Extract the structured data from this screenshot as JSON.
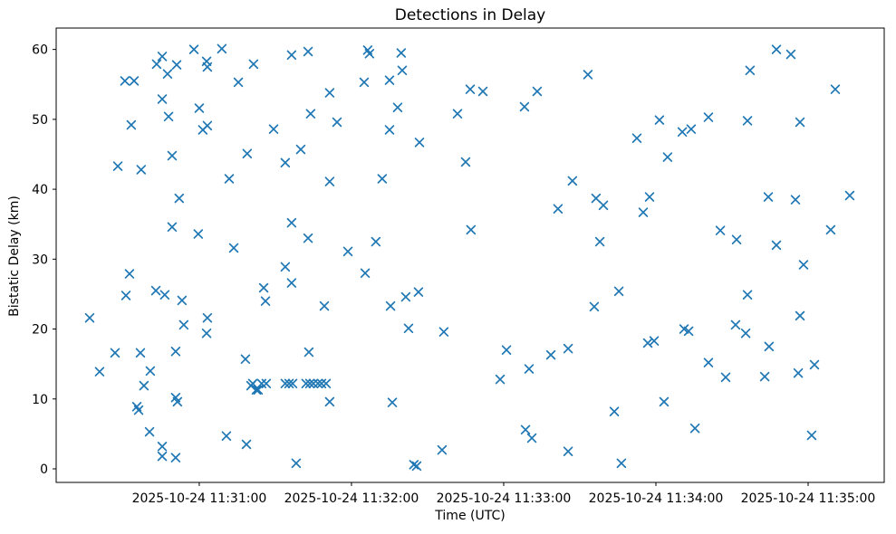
{
  "chart_data": {
    "type": "scatter",
    "title": "Detections in Delay",
    "xlabel": "Time (UTC)",
    "ylabel": "Bistatic Delay (km)",
    "x_unit": "seconds after 2025-10-24 11:30:00 UTC",
    "xlim": [
      3.6,
      330.0
    ],
    "ylim": [
      -1.94,
      63.06
    ],
    "x_ticks": [
      {
        "sec": 60,
        "label": "2025-10-24 11:31:00"
      },
      {
        "sec": 120,
        "label": "2025-10-24 11:32:00"
      },
      {
        "sec": 180,
        "label": "2025-10-24 11:33:00"
      },
      {
        "sec": 240,
        "label": "2025-10-24 11:34:00"
      },
      {
        "sec": 300,
        "label": "2025-10-24 11:35:00"
      }
    ],
    "y_ticks": [
      0,
      10,
      20,
      30,
      40,
      50,
      60
    ],
    "marker": "x",
    "marker_color": "#1f77b4",
    "spine_color": "#000000",
    "background_color": "#ffffff",
    "points": [
      [
        57.9,
        60.0
      ],
      [
        68.9,
        60.1
      ],
      [
        45.4,
        59.0
      ],
      [
        43.2,
        57.9
      ],
      [
        51.1,
        57.8
      ],
      [
        62.9,
        58.3
      ],
      [
        63.2,
        57.5
      ],
      [
        81.4,
        57.9
      ],
      [
        47.5,
        56.5
      ],
      [
        30.7,
        55.5
      ],
      [
        34.3,
        55.5
      ],
      [
        75.4,
        55.3
      ],
      [
        45.4,
        52.9
      ],
      [
        60.0,
        51.6
      ],
      [
        47.9,
        50.4
      ],
      [
        33.2,
        49.2
      ],
      [
        61.4,
        48.5
      ],
      [
        63.2,
        49.1
      ],
      [
        49.3,
        44.8
      ],
      [
        78.9,
        45.1
      ],
      [
        27.9,
        43.3
      ],
      [
        37.1,
        42.8
      ],
      [
        71.8,
        41.5
      ],
      [
        52.1,
        38.7
      ],
      [
        49.3,
        34.6
      ],
      [
        59.6,
        33.6
      ],
      [
        73.6,
        31.6
      ],
      [
        32.5,
        27.9
      ],
      [
        31.1,
        24.8
      ],
      [
        42.9,
        25.5
      ],
      [
        46.4,
        24.9
      ],
      [
        53.2,
        24.1
      ],
      [
        85.4,
        25.9
      ],
      [
        86.1,
        24.0
      ],
      [
        16.8,
        21.6
      ],
      [
        63.2,
        21.6
      ],
      [
        53.9,
        20.6
      ],
      [
        62.9,
        19.4
      ],
      [
        26.8,
        16.6
      ],
      [
        36.8,
        16.6
      ],
      [
        50.7,
        16.8
      ],
      [
        78.2,
        15.7
      ],
      [
        20.7,
        13.9
      ],
      [
        40.7,
        14.0
      ],
      [
        38.2,
        11.9
      ],
      [
        81.1,
        12.2
      ],
      [
        83.2,
        11.3
      ],
      [
        50.7,
        10.2
      ],
      [
        51.4,
        9.6
      ],
      [
        35.4,
        8.9
      ],
      [
        36.1,
        8.4
      ],
      [
        40.4,
        5.3
      ],
      [
        70.7,
        4.7
      ],
      [
        45.4,
        3.2
      ],
      [
        78.6,
        3.5
      ],
      [
        45.4,
        1.8
      ],
      [
        50.7,
        1.6
      ],
      [
        96.4,
        59.2
      ],
      [
        102.9,
        59.7
      ],
      [
        126.4,
        59.9
      ],
      [
        127.1,
        59.4
      ],
      [
        139.6,
        59.5
      ],
      [
        140.0,
        57.0
      ],
      [
        125.0,
        55.3
      ],
      [
        135.0,
        55.6
      ],
      [
        111.4,
        53.8
      ],
      [
        166.8,
        54.3
      ],
      [
        103.9,
        50.8
      ],
      [
        114.3,
        49.6
      ],
      [
        138.2,
        51.7
      ],
      [
        161.8,
        50.8
      ],
      [
        89.3,
        48.6
      ],
      [
        135.0,
        48.5
      ],
      [
        146.8,
        46.7
      ],
      [
        100.0,
        45.7
      ],
      [
        93.9,
        43.8
      ],
      [
        165.0,
        43.9
      ],
      [
        111.4,
        41.1
      ],
      [
        132.1,
        41.5
      ],
      [
        96.4,
        35.2
      ],
      [
        102.9,
        33.0
      ],
      [
        129.6,
        32.5
      ],
      [
        118.6,
        31.1
      ],
      [
        167.1,
        34.2
      ],
      [
        93.9,
        28.9
      ],
      [
        125.4,
        28.0
      ],
      [
        96.4,
        26.6
      ],
      [
        109.3,
        23.3
      ],
      [
        135.4,
        23.3
      ],
      [
        141.4,
        24.6
      ],
      [
        146.4,
        25.3
      ],
      [
        142.5,
        20.1
      ],
      [
        156.4,
        19.6
      ],
      [
        103.2,
        16.7
      ],
      [
        80.4,
        11.9
      ],
      [
        82.5,
        11.3
      ],
      [
        84.6,
        12.2
      ],
      [
        86.4,
        12.2
      ],
      [
        93.9,
        12.2
      ],
      [
        95.4,
        12.2
      ],
      [
        96.8,
        12.2
      ],
      [
        102.1,
        12.2
      ],
      [
        103.6,
        12.2
      ],
      [
        105.0,
        12.2
      ],
      [
        106.8,
        12.2
      ],
      [
        108.2,
        12.2
      ],
      [
        110.0,
        12.2
      ],
      [
        111.4,
        9.6
      ],
      [
        136.1,
        9.5
      ],
      [
        155.7,
        2.7
      ],
      [
        98.2,
        0.8
      ],
      [
        144.6,
        0.6
      ],
      [
        145.7,
        0.4
      ],
      [
        213.2,
        56.4
      ],
      [
        171.8,
        54.0
      ],
      [
        193.2,
        54.0
      ],
      [
        188.2,
        51.8
      ],
      [
        241.4,
        49.9
      ],
      [
        250.4,
        48.2
      ],
      [
        253.9,
        48.6
      ],
      [
        232.5,
        47.3
      ],
      [
        244.6,
        44.6
      ],
      [
        207.1,
        41.2
      ],
      [
        216.4,
        38.7
      ],
      [
        219.3,
        37.7
      ],
      [
        237.5,
        38.9
      ],
      [
        235.0,
        36.7
      ],
      [
        201.4,
        37.2
      ],
      [
        217.9,
        32.5
      ],
      [
        225.4,
        25.4
      ],
      [
        215.7,
        23.2
      ],
      [
        236.8,
        18.0
      ],
      [
        239.3,
        18.3
      ],
      [
        181.1,
        17.0
      ],
      [
        205.4,
        17.2
      ],
      [
        198.6,
        16.3
      ],
      [
        190.0,
        14.3
      ],
      [
        178.6,
        12.8
      ],
      [
        243.2,
        9.6
      ],
      [
        223.6,
        8.2
      ],
      [
        188.6,
        5.6
      ],
      [
        191.1,
        4.4
      ],
      [
        205.4,
        2.5
      ],
      [
        226.4,
        0.8
      ],
      [
        287.5,
        60.0
      ],
      [
        293.2,
        59.3
      ],
      [
        277.1,
        57.0
      ],
      [
        310.7,
        54.3
      ],
      [
        260.7,
        50.3
      ],
      [
        276.1,
        49.8
      ],
      [
        296.8,
        49.6
      ],
      [
        284.3,
        38.9
      ],
      [
        295.0,
        38.5
      ],
      [
        316.4,
        39.1
      ],
      [
        265.4,
        34.1
      ],
      [
        271.8,
        32.8
      ],
      [
        308.9,
        34.2
      ],
      [
        287.5,
        32.0
      ],
      [
        298.2,
        29.2
      ],
      [
        276.1,
        24.9
      ],
      [
        296.8,
        21.9
      ],
      [
        251.1,
        20.0
      ],
      [
        252.9,
        19.7
      ],
      [
        271.4,
        20.6
      ],
      [
        275.4,
        19.4
      ],
      [
        284.6,
        17.5
      ],
      [
        260.7,
        15.2
      ],
      [
        267.5,
        13.1
      ],
      [
        282.9,
        13.2
      ],
      [
        296.1,
        13.7
      ],
      [
        302.5,
        14.9
      ],
      [
        255.4,
        5.8
      ],
      [
        301.4,
        4.8
      ]
    ]
  }
}
